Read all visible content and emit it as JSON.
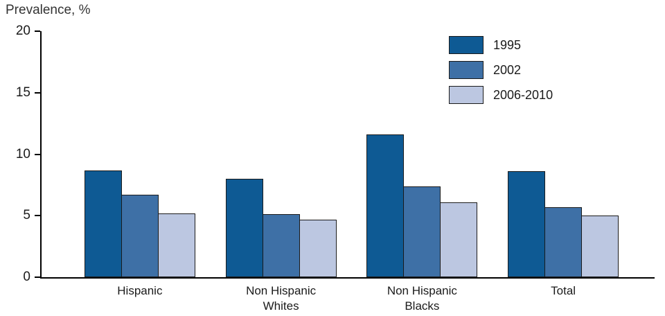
{
  "chart_data": {
    "type": "bar",
    "title": "Prevalence, %",
    "categories": [
      "Hispanic",
      "Non Hispanic\nWhites",
      "Non Hispanic\nBlacks",
      "Total"
    ],
    "series": [
      {
        "name": "1995",
        "color": "#0e5a94",
        "values": [
          8.7,
          8.0,
          11.6,
          8.6
        ]
      },
      {
        "name": "2002",
        "color": "#3e70a6",
        "values": [
          6.7,
          5.1,
          7.4,
          5.7
        ]
      },
      {
        "name": "2006-2010",
        "color": "#bcc7e1",
        "values": [
          5.2,
          4.7,
          6.1,
          5.0
        ]
      }
    ],
    "xlabel": "",
    "ylabel": "Prevalence, %",
    "ylim": [
      0,
      20
    ],
    "yticks": [
      0,
      5,
      10,
      15,
      20
    ],
    "grid": false,
    "legend_position": "top-right",
    "bar_border_color": "#1a1a1a",
    "axis_color": "#000000"
  }
}
